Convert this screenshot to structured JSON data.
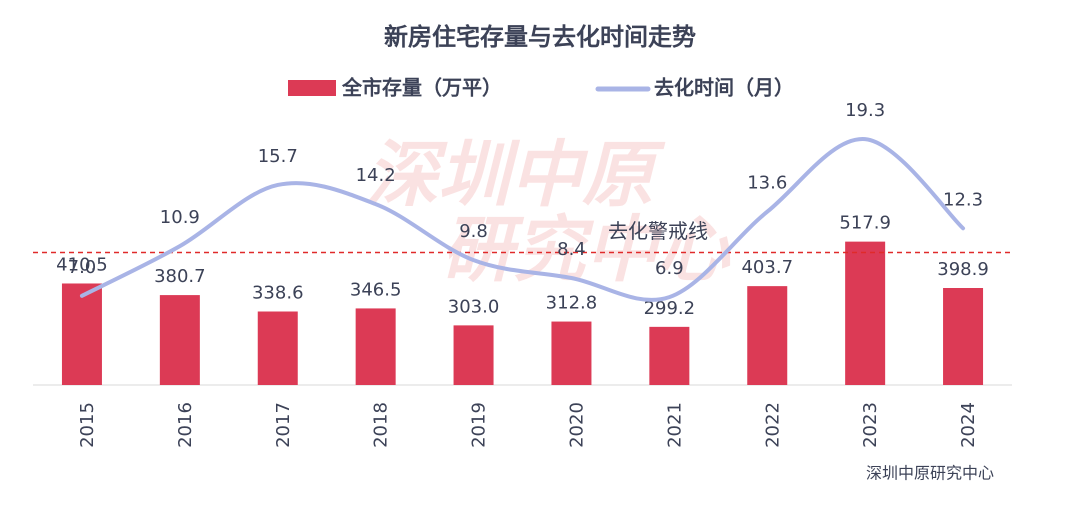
{
  "chart_data": {
    "type": "bar_line",
    "title": "新房住宅存量与去化时间走势",
    "categories": [
      "2015",
      "2016",
      "2017",
      "2018",
      "2019",
      "2020",
      "2021",
      "2022",
      "2023",
      "2024"
    ],
    "series": [
      {
        "name": "全市存量（万平）",
        "type": "bar",
        "color": "#dc3a55",
        "values": [
          410.5,
          380.7,
          338.6,
          346.5,
          303.0,
          312.8,
          299.2,
          403.7,
          517.9,
          398.9
        ],
        "value_labels": [
          "410.5",
          "380.7",
          "338.6",
          "346.5",
          "303.0",
          "312.8",
          "299.2",
          "403.7",
          "517.9",
          "398.9"
        ]
      },
      {
        "name": "去化时间（月）",
        "type": "line",
        "axis": "y2",
        "color": "#a9b4e6",
        "values": [
          7.0,
          10.9,
          15.7,
          14.2,
          9.8,
          8.4,
          6.9,
          13.6,
          19.3,
          12.3
        ],
        "value_labels": [
          "7.0",
          "10.9",
          "15.7",
          "14.2",
          "9.8",
          "8.4",
          "6.9",
          "13.6",
          "19.3",
          "12.3"
        ]
      }
    ],
    "ylim": [
      150,
      830
    ],
    "y2lim": [
      0,
      20.8
    ],
    "reference_line": {
      "label": "去化警戒线",
      "value": 10.4,
      "axis": "y2",
      "color": "#e02a2a"
    },
    "watermark": [
      "深圳中原",
      "研究中心"
    ],
    "source": "深圳中原研究中心"
  }
}
